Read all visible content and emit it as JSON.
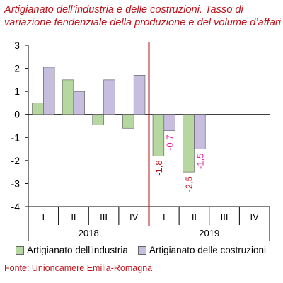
{
  "title_line1": "Artigianato dell’industria e delle costruzioni. Tasso di",
  "title_line2": "variazione tendenziale della produzione e del volume d’affari",
  "source": "Fonte: Unioncamere Emilia-Romagna",
  "colors": {
    "industria": "#b7d7a0",
    "costruzioni": "#c7bedf",
    "divider": "#c0141c",
    "label": "#e020a0"
  },
  "chart_data": {
    "type": "bar",
    "categories": [
      "I",
      "II",
      "III",
      "IV",
      "I",
      "II",
      "III",
      "IV"
    ],
    "groups": [
      {
        "label": "2018",
        "start": 0,
        "end": 3
      },
      {
        "label": "2019",
        "start": 4,
        "end": 7
      }
    ],
    "series": [
      {
        "name": "Artigianato dell'industria",
        "values": [
          0.5,
          1.5,
          -0.45,
          -0.6,
          -1.8,
          -2.5,
          null,
          null
        ]
      },
      {
        "name": "Artigianato delle costruzioni",
        "values": [
          2.05,
          1.0,
          1.5,
          1.7,
          -0.7,
          -1.5,
          null,
          null
        ]
      }
    ],
    "data_labels": [
      {
        "series": 0,
        "index": 4,
        "text": "-1,8"
      },
      {
        "series": 1,
        "index": 4,
        "text": "-0,7"
      },
      {
        "series": 0,
        "index": 5,
        "text": "-2,5"
      },
      {
        "series": 1,
        "index": 5,
        "text": "-1,5"
      }
    ],
    "yticks": [
      "3",
      "2",
      "1",
      "0",
      "-1",
      "-2",
      "-3",
      "-4"
    ],
    "ylim": [
      -4,
      3
    ],
    "divider_after_index": 3,
    "legend_position": "bottom"
  }
}
